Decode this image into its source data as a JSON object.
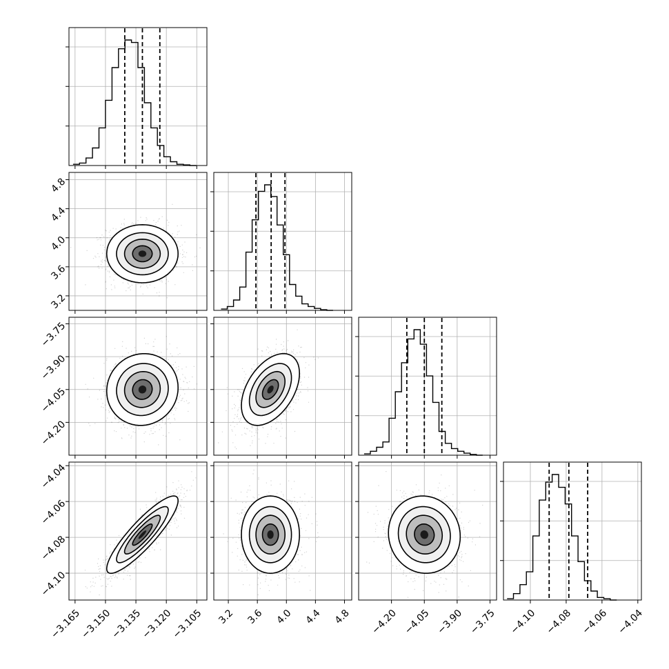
{
  "chart_data": {
    "type": "corner",
    "grid": true,
    "parameters": [
      {
        "range": [
          -3.168,
          -3.1
        ],
        "ticks": [
          -3.165,
          -3.15,
          -3.135,
          -3.12,
          -3.105
        ],
        "tick_labels": [
          "−3.165",
          "−3.150",
          "−3.135",
          "−3.120",
          "−3.105"
        ],
        "hist_edges_start": -3.166,
        "hist_bin_width": 0.0032,
        "hist_counts": [
          0.01,
          0.02,
          0.06,
          0.14,
          0.3,
          0.52,
          0.78,
          0.93,
          1.0,
          0.98,
          0.78,
          0.5,
          0.3,
          0.16,
          0.07,
          0.03,
          0.01,
          0.005,
          0
        ],
        "quantiles": [
          -3.1405,
          -3.1318,
          -3.1232
        ]
      },
      {
        "range": [
          3.0,
          4.9
        ],
        "ticks": [
          3.2,
          3.6,
          4.0,
          4.4,
          4.8
        ],
        "tick_labels": [
          "3.2",
          "3.6",
          "4.0",
          "4.4",
          "4.8"
        ],
        "hist_edges_start": 3.1,
        "hist_bin_width": 0.0857,
        "hist_counts": [
          0.01,
          0.03,
          0.08,
          0.18,
          0.45,
          0.7,
          0.92,
          0.97,
          0.88,
          0.66,
          0.43,
          0.2,
          0.11,
          0.05,
          0.03,
          0.015,
          0.005,
          0
        ],
        "quantiles": [
          3.58,
          3.79,
          3.98
        ]
      },
      {
        "range": [
          -4.35,
          -3.72
        ],
        "ticks": [
          -4.2,
          -4.05,
          -3.9,
          -3.75
        ],
        "tick_labels": [
          "−4.20",
          "−4.05",
          "−3.90",
          "−3.75"
        ],
        "hist_edges_start": -4.325,
        "hist_bin_width": 0.0285,
        "hist_counts": [
          0.01,
          0.03,
          0.06,
          0.1,
          0.28,
          0.48,
          0.7,
          0.88,
          0.95,
          0.84,
          0.6,
          0.4,
          0.18,
          0.09,
          0.05,
          0.03,
          0.015,
          0.005,
          0
        ],
        "quantiles": [
          -4.13,
          -4.05,
          -3.97
        ]
      },
      {
        "range": [
          -4.115,
          -4.038
        ],
        "ticks": [
          -4.1,
          -4.08,
          -4.06,
          -4.04
        ],
        "tick_labels": [
          "−4.10",
          "−4.08",
          "−4.06",
          "−4.04"
        ],
        "hist_edges_start": -4.113,
        "hist_bin_width": 0.0036,
        "hist_counts": [
          0.01,
          0.05,
          0.12,
          0.22,
          0.5,
          0.78,
          0.92,
          0.98,
          0.88,
          0.75,
          0.5,
          0.3,
          0.15,
          0.07,
          0.02,
          0.01,
          0
        ],
        "quantiles": [
          -4.0895,
          -4.0785,
          -4.068
        ]
      }
    ],
    "pairs": [
      {
        "row": 1,
        "col": 0,
        "mean": [
          -3.1318,
          3.78
        ],
        "sd": [
          0.0088,
          0.2
        ],
        "rho": 0.0
      },
      {
        "row": 2,
        "col": 0,
        "mean": [
          -3.1318,
          -4.05
        ],
        "sd": [
          0.0088,
          0.082
        ],
        "rho": 0.05
      },
      {
        "row": 2,
        "col": 1,
        "mean": [
          3.78,
          -4.05
        ],
        "sd": [
          0.2,
          0.082
        ],
        "rho": 0.45
      },
      {
        "row": 3,
        "col": 0,
        "mean": [
          -3.1318,
          -4.0785
        ],
        "sd": [
          0.0088,
          0.0108
        ],
        "rho": 0.88
      },
      {
        "row": 3,
        "col": 1,
        "mean": [
          3.78,
          -4.0785
        ],
        "sd": [
          0.2,
          0.0108
        ],
        "rho": 0.0
      },
      {
        "row": 3,
        "col": 2,
        "mean": [
          -4.05,
          -4.0785
        ],
        "sd": [
          0.082,
          0.0108
        ],
        "rho": -0.05
      }
    ]
  }
}
